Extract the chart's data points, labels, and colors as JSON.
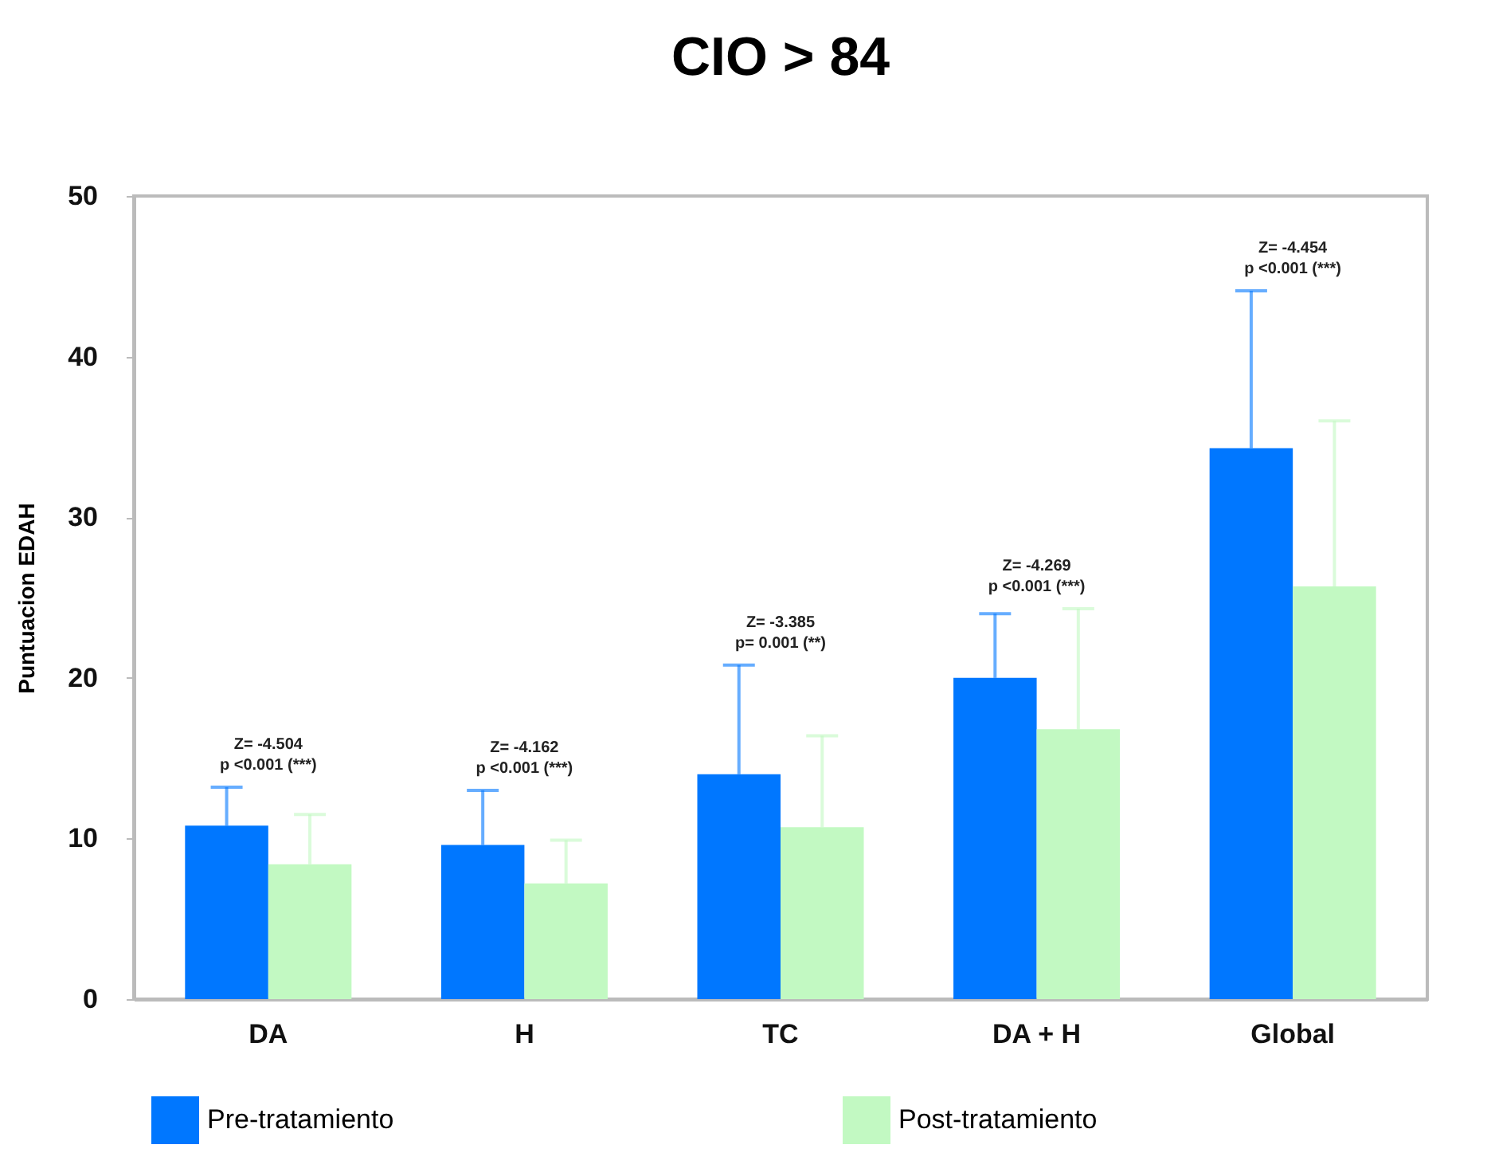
{
  "chart_data": {
    "type": "bar",
    "title": "CIO > 84",
    "ylabel": "Puntuacion EDAH",
    "categories": [
      "DA",
      "H",
      "TC",
      "DA + H",
      "Global"
    ],
    "series": [
      {
        "name": "Pre-tratamiento",
        "color": "#0077ff",
        "values": [
          10.8,
          9.6,
          14.0,
          20.0,
          34.3
        ],
        "errors": [
          [
            10.8,
            13.2
          ],
          [
            9.6,
            13.0
          ],
          [
            14.0,
            20.8
          ],
          [
            20.0,
            24.0
          ],
          [
            34.3,
            44.1
          ]
        ]
      },
      {
        "name": "Post-tratamiento",
        "color": "#c2f9c2",
        "values": [
          8.4,
          7.2,
          10.7,
          16.8,
          25.7
        ],
        "errors": [
          [
            8.4,
            11.5
          ],
          [
            7.2,
            9.9
          ],
          [
            10.7,
            16.4
          ],
          [
            16.8,
            24.3
          ],
          [
            25.7,
            36.0
          ]
        ]
      }
    ],
    "ylim": [
      0,
      50
    ],
    "yticks": [
      0,
      10,
      20,
      30,
      40,
      50
    ],
    "grid": false,
    "legend": "bottom",
    "annotations": [
      "Z= -4.504\np <0.001 (***)",
      "Z= -4.162\np <0.001 (***)",
      "Z= -3.385\np= 0.001 (**)",
      "Z= -4.269\np <0.001 (***)",
      "Z= -4.454\np <0.001 (***)"
    ]
  }
}
